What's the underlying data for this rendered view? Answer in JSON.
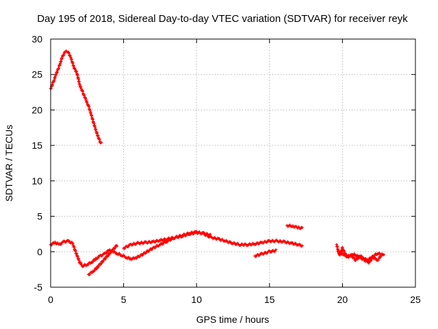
{
  "chart_data": {
    "type": "scatter",
    "title": "Day 195 of 2018, Sidereal Day-to-day VTEC variation (SDTVAR) for receiver reyk",
    "xlabel": "GPS time / hours",
    "ylabel": "SDTVAR / TECUs",
    "xlim": [
      0,
      25
    ],
    "ylim": [
      -5,
      30
    ],
    "xticks": [
      0,
      5,
      10,
      15,
      20,
      25
    ],
    "yticks": [
      -5,
      0,
      5,
      10,
      15,
      20,
      25,
      30
    ],
    "grid": true,
    "series": [
      {
        "name": "SDTVAR",
        "color": "#ff0000",
        "marker": "plus",
        "segments": [
          {
            "x": [
              0.0,
              0.2,
              0.4,
              0.6,
              0.8,
              1.0,
              1.2,
              1.4,
              1.6,
              1.8,
              2.0,
              2.2,
              2.4,
              2.6,
              2.8,
              3.0,
              3.2,
              3.4,
              3.5
            ],
            "y": [
              23.0,
              24.0,
              25.2,
              26.2,
              27.5,
              28.2,
              28.2,
              27.3,
              26.0,
              25.2,
              23.5,
              22.5,
              21.5,
              20.5,
              19.2,
              17.8,
              16.5,
              15.5,
              15.2
            ]
          },
          {
            "x": [
              0.0,
              0.3,
              0.6,
              0.9,
              1.2,
              1.5,
              1.8,
              2.0,
              2.2,
              2.5,
              2.8,
              3.1,
              3.4,
              3.7,
              4.0,
              4.3,
              4.6,
              4.9,
              5.2,
              5.5,
              5.8,
              6.2,
              6.6,
              7.0,
              7.5,
              8.0,
              8.5,
              9.0,
              9.5,
              10.0,
              10.5,
              11.0,
              11.5,
              12.0,
              12.5,
              13.0,
              13.5,
              14.0,
              14.5,
              15.0,
              15.5,
              16.0,
              16.5,
              17.0,
              17.3
            ],
            "y": [
              1.0,
              1.3,
              1.0,
              1.4,
              1.5,
              1.2,
              -0.5,
              -1.5,
              -2.0,
              -1.8,
              -1.5,
              -1.0,
              -0.6,
              -0.3,
              0.2,
              0.0,
              -0.3,
              -0.5,
              -0.8,
              -1.0,
              -0.9,
              -0.5,
              0.0,
              0.5,
              1.0,
              1.5,
              2.0,
              2.3,
              2.6,
              2.8,
              2.5,
              2.0,
              1.8,
              1.5,
              1.2,
              1.0,
              1.0,
              1.1,
              1.3,
              1.5,
              1.5,
              1.4,
              1.2,
              1.0,
              0.8
            ]
          },
          {
            "x": [
              2.6,
              2.9,
              3.2,
              3.5,
              3.8,
              4.1,
              4.4,
              4.6
            ],
            "y": [
              -3.2,
              -2.8,
              -2.2,
              -1.5,
              -0.8,
              -0.1,
              0.6,
              1.0
            ]
          },
          {
            "x": [
              5.0,
              5.5,
              6.0,
              6.5,
              7.0,
              7.5,
              8.0,
              8.5,
              9.0,
              9.5,
              10.0,
              10.5,
              11.0
            ],
            "y": [
              0.5,
              1.0,
              1.2,
              1.3,
              1.4,
              1.6,
              1.8,
              2.0,
              2.2,
              2.5,
              2.7,
              2.6,
              2.3
            ]
          },
          {
            "x": [
              14.0,
              14.5,
              15.0,
              15.5
            ],
            "y": [
              -0.6,
              -0.3,
              0.0,
              0.2
            ]
          },
          {
            "x": [
              16.2,
              16.6,
              17.0,
              17.3
            ],
            "y": [
              3.7,
              3.6,
              3.4,
              3.3
            ]
          },
          {
            "x": [
              19.6,
              19.8,
              20.0,
              20.3,
              20.6,
              20.9,
              21.2,
              21.5,
              21.8,
              22.1,
              22.4,
              22.7,
              22.9
            ],
            "y": [
              1.0,
              -0.5,
              0.5,
              -0.8,
              -0.5,
              -1.2,
              -0.6,
              -0.9,
              -1.5,
              -0.8,
              -1.2,
              -0.4,
              -0.3
            ]
          },
          {
            "x": [
              19.7,
              20.0,
              20.4,
              20.8,
              21.2,
              21.6,
              22.0,
              22.4,
              22.8
            ],
            "y": [
              0.0,
              -0.3,
              -0.6,
              -0.4,
              -0.8,
              -1.3,
              -0.8,
              -0.2,
              -0.5
            ]
          }
        ]
      }
    ]
  }
}
